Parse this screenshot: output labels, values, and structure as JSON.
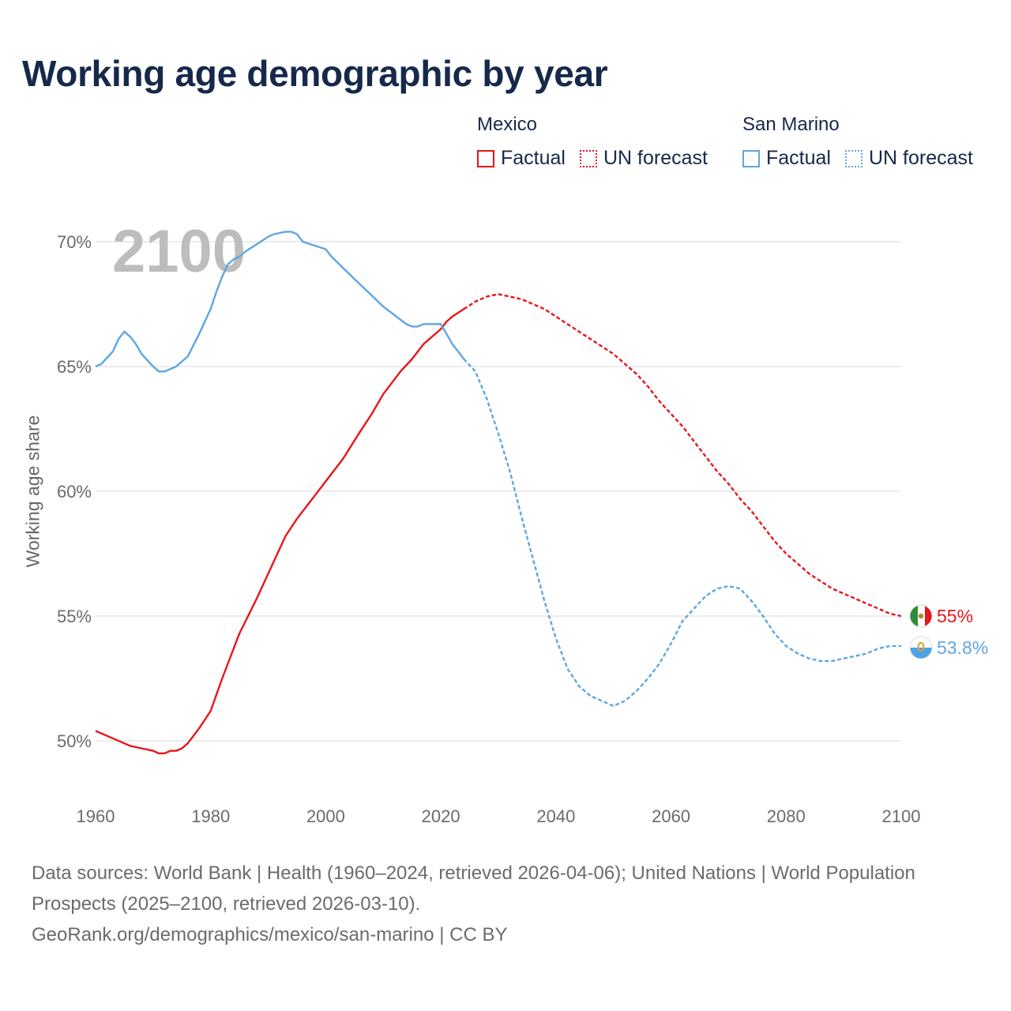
{
  "title": "Working age demographic by year",
  "legend": {
    "groups": [
      {
        "name": "Mexico",
        "color": "#e8151b",
        "factual_label": "Factual",
        "forecast_label": "UN forecast"
      },
      {
        "name": "San Marino",
        "color": "#5ea6e5",
        "factual_label": "Factual",
        "forecast_label": "UN forecast"
      }
    ]
  },
  "year_label": "2100",
  "footer": {
    "sources": "Data sources: World Bank | Health (1960–2024, retrieved 2026-04-06); United Nations | World Population Prospects (2025–2100, retrieved 2026-03-10).",
    "link": "GeoRank.org/demographics/mexico/san-marino | CC BY"
  },
  "chart_data": {
    "type": "line",
    "title": "Working age demographic by year",
    "xlabel": "",
    "ylabel": "Working age share",
    "xlim": [
      1960,
      2100
    ],
    "ylim": [
      48,
      71
    ],
    "x_ticks": [
      1960,
      1980,
      2000,
      2020,
      2040,
      2060,
      2080,
      2100
    ],
    "x_tick_labels": [
      "1960",
      "1980",
      "2000",
      "2020",
      "2040",
      "2060",
      "2080",
      "2100"
    ],
    "y_ticks": [
      50,
      55,
      60,
      65,
      70
    ],
    "y_tick_labels": [
      "50%",
      "55%",
      "60%",
      "65%",
      "70%"
    ],
    "grid": true,
    "factual_end_year": 2024,
    "series": [
      {
        "name": "Mexico",
        "color": "#e8151b",
        "end_label": "55%",
        "flag_icon": "mexico-flag-icon",
        "x": [
          1960,
          1963,
          1966,
          1968,
          1970,
          1971,
          1972,
          1973,
          1974,
          1975,
          1976,
          1978,
          1980,
          1982,
          1985,
          1988,
          1990,
          1993,
          1995,
          1998,
          2000,
          2003,
          2006,
          2008,
          2010,
          2013,
          2015,
          2017,
          2020,
          2021,
          2022,
          2024,
          2026,
          2028,
          2030,
          2032,
          2034,
          2036,
          2038,
          2040,
          2042,
          2044,
          2046,
          2048,
          2050,
          2052,
          2054,
          2056,
          2058,
          2060,
          2062,
          2064,
          2066,
          2068,
          2070,
          2072,
          2074,
          2076,
          2078,
          2080,
          2082,
          2084,
          2086,
          2088,
          2090,
          2092,
          2094,
          2096,
          2098,
          2100
        ],
        "y": [
          50.4,
          50.1,
          49.8,
          49.7,
          49.6,
          49.5,
          49.5,
          49.6,
          49.6,
          49.7,
          49.9,
          50.5,
          51.2,
          52.5,
          54.3,
          55.7,
          56.7,
          58.2,
          58.9,
          59.8,
          60.4,
          61.3,
          62.4,
          63.1,
          63.9,
          64.8,
          65.3,
          65.9,
          66.5,
          66.8,
          67.0,
          67.3,
          67.6,
          67.8,
          67.9,
          67.8,
          67.7,
          67.5,
          67.3,
          67.0,
          66.7,
          66.4,
          66.1,
          65.8,
          65.5,
          65.1,
          64.7,
          64.2,
          63.6,
          63.1,
          62.6,
          62.0,
          61.4,
          60.8,
          60.3,
          59.7,
          59.2,
          58.6,
          58.0,
          57.5,
          57.1,
          56.7,
          56.4,
          56.1,
          55.9,
          55.7,
          55.5,
          55.3,
          55.1,
          55.0
        ]
      },
      {
        "name": "San Marino",
        "color": "#5ea6e5",
        "end_label": "53.8%",
        "flag_icon": "san-marino-flag-icon",
        "x": [
          1960,
          1961,
          1963,
          1964,
          1965,
          1966,
          1967,
          1968,
          1970,
          1971,
          1972,
          1974,
          1976,
          1978,
          1980,
          1981,
          1982,
          1983,
          1984,
          1985,
          1986,
          1988,
          1990,
          1991,
          1993,
          1994,
          1995,
          1996,
          2000,
          2001,
          2005,
          2010,
          2014,
          2015,
          2016,
          2017,
          2020,
          2021,
          2022,
          2023,
          2024,
          2026,
          2028,
          2030,
          2032,
          2034,
          2036,
          2038,
          2040,
          2042,
          2044,
          2046,
          2048,
          2050,
          2052,
          2054,
          2056,
          2058,
          2060,
          2062,
          2064,
          2066,
          2068,
          2070,
          2072,
          2074,
          2076,
          2078,
          2080,
          2082,
          2084,
          2086,
          2088,
          2090,
          2092,
          2094,
          2096,
          2098,
          2100
        ],
        "y": [
          65.0,
          65.1,
          65.6,
          66.1,
          66.4,
          66.2,
          65.9,
          65.5,
          65.0,
          64.8,
          64.8,
          65.0,
          65.4,
          66.3,
          67.3,
          68.0,
          68.6,
          69.1,
          69.3,
          69.4,
          69.6,
          69.9,
          70.2,
          70.3,
          70.4,
          70.4,
          70.3,
          70.0,
          69.7,
          69.4,
          68.5,
          67.4,
          66.7,
          66.6,
          66.6,
          66.7,
          66.7,
          66.3,
          65.9,
          65.6,
          65.3,
          64.8,
          63.7,
          62.3,
          60.8,
          59.0,
          57.3,
          55.6,
          54.1,
          52.9,
          52.2,
          51.8,
          51.6,
          51.4,
          51.6,
          52.0,
          52.5,
          53.1,
          53.9,
          54.8,
          55.3,
          55.8,
          56.1,
          56.2,
          56.1,
          55.6,
          55.0,
          54.3,
          53.8,
          53.5,
          53.3,
          53.2,
          53.2,
          53.3,
          53.4,
          53.5,
          53.7,
          53.8,
          53.8
        ]
      }
    ]
  }
}
